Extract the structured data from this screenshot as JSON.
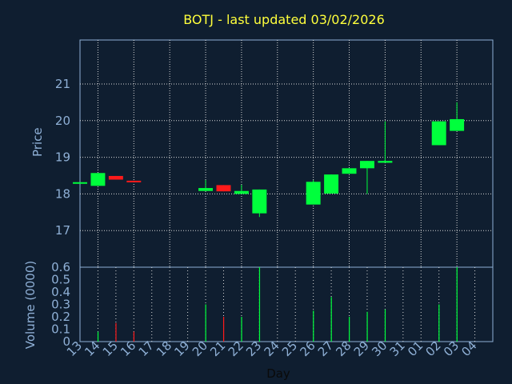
{
  "chart_data": {
    "type": "candlestick",
    "title": "BOTJ - last updated 03/02/2026",
    "x_tick_labels": [
      "13",
      "14",
      "15",
      "16",
      "17",
      "18",
      "19",
      "20",
      "21",
      "22",
      "23",
      "24",
      "25",
      "26",
      "27",
      "28",
      "29",
      "30",
      "31",
      "01",
      "02",
      "03",
      "04"
    ],
    "xlabel": "Day",
    "price_panel": {
      "ylabel": "Price",
      "ylim": [
        16,
        22.2
      ],
      "yticks": [
        17,
        18,
        19,
        20,
        21
      ],
      "candles": [
        {
          "x": "13",
          "open": 18.32,
          "close": 18.32,
          "high": 18.32,
          "low": 18.32,
          "dir": "up"
        },
        {
          "x": "14",
          "open": 18.22,
          "close": 18.57,
          "high": 18.57,
          "low": 18.22,
          "dir": "up"
        },
        {
          "x": "15",
          "open": 18.49,
          "close": 18.39,
          "high": 18.49,
          "low": 18.39,
          "dir": "down"
        },
        {
          "x": "16",
          "open": 18.36,
          "close": 18.33,
          "high": 18.36,
          "low": 18.33,
          "dir": "down"
        },
        {
          "x": "20",
          "open": 18.08,
          "close": 18.16,
          "high": 18.38,
          "low": 18.08,
          "dir": "up"
        },
        {
          "x": "21",
          "open": 18.24,
          "close": 18.07,
          "high": 18.24,
          "low": 18.07,
          "dir": "down"
        },
        {
          "x": "22",
          "open": 18.0,
          "close": 18.08,
          "high": 18.25,
          "low": 18.0,
          "dir": "up"
        },
        {
          "x": "23",
          "open": 17.47,
          "close": 18.12,
          "high": 18.12,
          "low": 17.37,
          "dir": "up"
        },
        {
          "x": "26",
          "open": 17.71,
          "close": 18.33,
          "high": 18.38,
          "low": 17.71,
          "dir": "up"
        },
        {
          "x": "27",
          "open": 18.01,
          "close": 18.53,
          "high": 18.53,
          "low": 18.01,
          "dir": "up"
        },
        {
          "x": "28",
          "open": 18.55,
          "close": 18.7,
          "high": 18.7,
          "low": 18.55,
          "dir": "up"
        },
        {
          "x": "29",
          "open": 18.7,
          "close": 18.9,
          "high": 18.9,
          "low": 18.0,
          "dir": "up"
        },
        {
          "x": "30",
          "open": 18.85,
          "close": 18.9,
          "high": 19.98,
          "low": 18.85,
          "dir": "up"
        },
        {
          "x": "02",
          "open": 19.33,
          "close": 19.98,
          "high": 19.98,
          "low": 19.33,
          "dir": "up"
        },
        {
          "x": "03",
          "open": 19.72,
          "close": 20.04,
          "high": 20.5,
          "low": 19.72,
          "dir": "up"
        }
      ]
    },
    "volume_panel": {
      "ylabel": "Volume (0000)",
      "ylim": [
        0,
        0.6
      ],
      "yticks": [
        0,
        0.1,
        0.2,
        0.3,
        0.4,
        0.5,
        0.6
      ],
      "bars": [
        {
          "x": "14",
          "value": 0.08,
          "dir": "up"
        },
        {
          "x": "15",
          "value": 0.15,
          "dir": "down"
        },
        {
          "x": "16",
          "value": 0.08,
          "dir": "down"
        },
        {
          "x": "20",
          "value": 0.3,
          "dir": "up"
        },
        {
          "x": "21",
          "value": 0.2,
          "dir": "down"
        },
        {
          "x": "22",
          "value": 0.2,
          "dir": "up"
        },
        {
          "x": "23",
          "value": 0.6,
          "dir": "up"
        },
        {
          "x": "26",
          "value": 0.25,
          "dir": "up"
        },
        {
          "x": "27",
          "value": 0.36,
          "dir": "up"
        },
        {
          "x": "28",
          "value": 0.2,
          "dir": "up"
        },
        {
          "x": "29",
          "value": 0.24,
          "dir": "up"
        },
        {
          "x": "30",
          "value": 0.26,
          "dir": "up"
        },
        {
          "x": "02",
          "value": 0.3,
          "dir": "up"
        },
        {
          "x": "03",
          "value": 0.6,
          "dir": "up"
        }
      ]
    },
    "grid": true,
    "colors": {
      "background": "#0f1e30",
      "up": "#00ff3c",
      "down": "#ff1a1a",
      "axis": "#8fb0d6",
      "grid": "#d8d8d8",
      "title": "#ffff3c"
    }
  }
}
